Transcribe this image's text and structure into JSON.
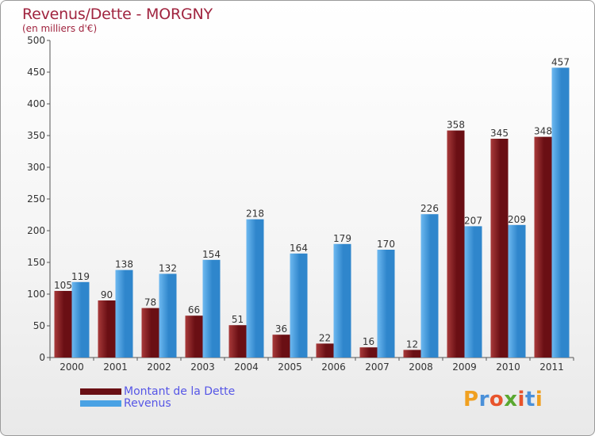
{
  "header": {
    "title": "Revenus/Dette - MORGNY",
    "subtitle": "(en milliers d'€)"
  },
  "legend": {
    "items": [
      {
        "label": "Montant de la Dette",
        "color": "#6a0f14"
      },
      {
        "label": "Revenus",
        "color": "#4aa2e4"
      }
    ]
  },
  "logo": {
    "letters": [
      {
        "ch": "P",
        "color": "#f0a020"
      },
      {
        "ch": "r",
        "color": "#4a90d9"
      },
      {
        "ch": "o",
        "color": "#e8542c"
      },
      {
        "ch": "x",
        "color": "#5aa830"
      },
      {
        "ch": "i",
        "color": "#e8542c"
      },
      {
        "ch": "t",
        "color": "#4a90d9"
      },
      {
        "ch": "i",
        "color": "#f0a020"
      }
    ]
  },
  "chart_data": {
    "type": "bar",
    "title": "Revenus/Dette - MORGNY",
    "ylabel": "(en milliers d'€)",
    "xlabel": "",
    "categories": [
      "2000",
      "2001",
      "2002",
      "2003",
      "2004",
      "2005",
      "2006",
      "2007",
      "2008",
      "2009",
      "2010",
      "2011"
    ],
    "ylim": [
      0,
      500
    ],
    "yticks": [
      0,
      50,
      100,
      150,
      200,
      250,
      300,
      350,
      400,
      450,
      500
    ],
    "grid": false,
    "legend_position": "bottom-left",
    "series": [
      {
        "name": "Montant de la Dette",
        "color": "#6a0f14",
        "colorLight": "#a83a3a",
        "values": [
          105,
          90,
          78,
          66,
          51,
          36,
          22,
          16,
          12,
          358,
          345,
          348
        ]
      },
      {
        "name": "Revenus",
        "color": "#2f86cc",
        "colorLight": "#6db8f0",
        "values": [
          119,
          138,
          132,
          154,
          218,
          164,
          179,
          170,
          226,
          207,
          209,
          457
        ]
      }
    ]
  }
}
